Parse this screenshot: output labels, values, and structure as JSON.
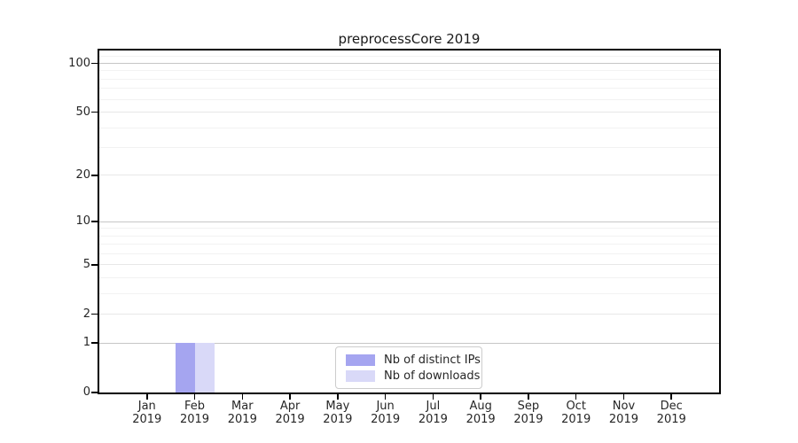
{
  "chart_data": {
    "type": "bar",
    "title": "preprocessCore 2019",
    "yscale": "log1p",
    "ylim": [
      0,
      120
    ],
    "yticks": [
      0,
      1,
      2,
      5,
      10,
      20,
      50,
      100
    ],
    "power_ticks": [
      1,
      10,
      100
    ],
    "minor_yticks": [
      3,
      4,
      6,
      7,
      8,
      9,
      30,
      40,
      60,
      70,
      80,
      90,
      110
    ],
    "categories": [
      "Jan",
      "Feb",
      "Mar",
      "Apr",
      "May",
      "Jun",
      "Jul",
      "Aug",
      "Sep",
      "Oct",
      "Nov",
      "Dec"
    ],
    "year": "2019",
    "series": [
      {
        "name": "Nb of distinct IPs",
        "color": "#a5a5f0",
        "values": [
          0,
          1,
          0,
          0,
          0,
          0,
          0,
          0,
          0,
          0,
          0,
          0
        ]
      },
      {
        "name": "Nb of downloads",
        "color": "#d9d9f8",
        "values": [
          0,
          1,
          0,
          0,
          0,
          0,
          0,
          0,
          0,
          0,
          0,
          0
        ]
      }
    ],
    "legend_position": "lower-center",
    "grid": true,
    "xlabel": "",
    "ylabel": ""
  }
}
